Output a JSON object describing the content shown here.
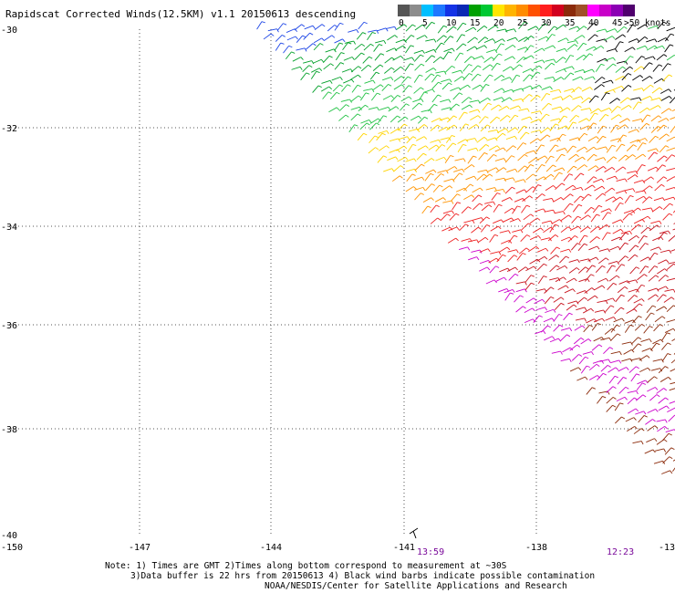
{
  "title": "Rapidscat Corrected Winds(12.5KM) v1.1 20150613 descending",
  "legend": {
    "bins": [
      {
        "label": "0",
        "color": "#555555"
      },
      {
        "label": "",
        "color": "#8c8c8c"
      },
      {
        "label": "5",
        "color": "#00bfff"
      },
      {
        "label": "",
        "color": "#1e78ff"
      },
      {
        "label": "10",
        "color": "#1432e6"
      },
      {
        "label": "",
        "color": "#0a28b4"
      },
      {
        "label": "15",
        "color": "#00a000"
      },
      {
        "label": "",
        "color": "#00c832"
      },
      {
        "label": "20",
        "color": "#ffe600"
      },
      {
        "label": "",
        "color": "#ffb400"
      },
      {
        "label": "25",
        "color": "#ff8c00"
      },
      {
        "label": "",
        "color": "#ff5000"
      },
      {
        "label": "30",
        "color": "#ff1e1e"
      },
      {
        "label": "",
        "color": "#d2001e"
      },
      {
        "label": "35",
        "color": "#8b2a0a"
      },
      {
        "label": "",
        "color": "#a05028"
      },
      {
        "label": "40",
        "color": "#ff00ff"
      },
      {
        "label": "",
        "color": "#c800c8"
      },
      {
        "label": "45",
        "color": "#8c00b4"
      },
      {
        "label": "",
        "color": "#50006e"
      }
    ],
    "overflow_label": ">50 knots"
  },
  "axes": {
    "lon_labels": [
      "-150",
      "-147",
      "-144",
      "-141",
      "-138",
      "-13"
    ],
    "lat_labels": [
      "-30",
      "-32",
      "-34",
      "-36",
      "-38",
      "-40"
    ]
  },
  "pass_times": [
    "13:59",
    "12:23"
  ],
  "notes": [
    "Note: 1) Times are GMT 2)Times along bottom correspond to measurement at ~30S",
    "3)Data buffer is 22 hrs from 20150613 4) Black wind barbs indicate possible contamination",
    "NOAA/NESDIS/Center for Satellite Applications and Research"
  ]
}
